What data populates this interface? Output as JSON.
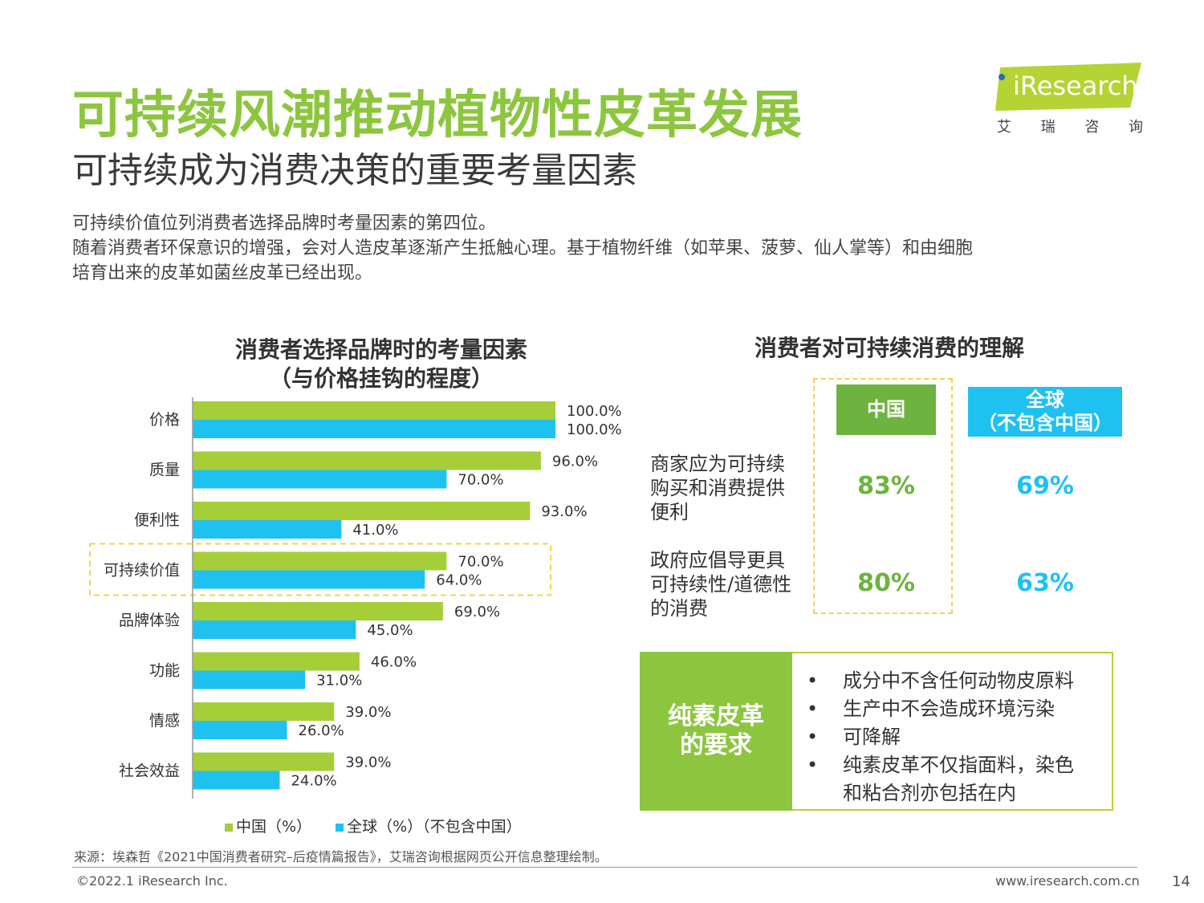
{
  "header": {
    "title": "可持续风潮推动植物性皮革发展",
    "subtitle": "可持续成为消费决策的重要考量因素"
  },
  "intro": {
    "line1": "可持续价值位列消费者选择品牌时考量因素的第四位。",
    "line2": "随着消费者环保意识的增强，会对人造皮革逐渐产生抵触心理。基于植物纤维（如苹果、菠萝、仙人掌等）和由细胞",
    "line3": "培育出来的皮革如菌丝皮革已经出现。"
  },
  "logo": {
    "text": "iResearch",
    "sub": [
      "艾",
      "瑞",
      "咨",
      "询"
    ],
    "color": "#b4d334"
  },
  "left_chart": {
    "title_line1": "消费者选择品牌时的考量因素",
    "title_line2": "（与价格挂钩的程度）",
    "legend_china": "中国（%）",
    "legend_global": "全球（%）（不包含中国）"
  },
  "chart_data": [
    {
      "type": "bar",
      "orientation": "horizontal",
      "title": "消费者选择品牌时的考量因素（与价格挂钩的程度）",
      "categories": [
        "价格",
        "质量",
        "便利性",
        "可持续价值",
        "品牌体验",
        "功能",
        "情感",
        "社会效益"
      ],
      "series": [
        {
          "name": "中国（%）",
          "color": "#a6ce39",
          "values": [
            100.0,
            96.0,
            93.0,
            70.0,
            69.0,
            46.0,
            39.0,
            39.0
          ],
          "labels": [
            "100.0%",
            "96.0%",
            "93.0%",
            "70.0%",
            "69.0%",
            "46.0%",
            "39.0%",
            "39.0%"
          ]
        },
        {
          "name": "全球（%）（不包含中国）",
          "color": "#1ec1f0",
          "values": [
            100.0,
            70.0,
            41.0,
            64.0,
            45.0,
            31.0,
            26.0,
            24.0
          ],
          "labels": [
            "100.0%",
            "70.0%",
            "41.0%",
            "64.0%",
            "45.0%",
            "31.0%",
            "26.0%",
            "24.0%"
          ]
        }
      ],
      "xlim": [
        0,
        100
      ],
      "highlighted_category": "可持续价值",
      "legend_position": "bottom"
    },
    {
      "type": "table",
      "title": "消费者对可持续消费的理解",
      "columns": [
        "中国",
        "全球（不包含中国）"
      ],
      "rows": [
        {
          "label": "商家应为可持续购买和消费提供便利",
          "values": [
            "83%",
            "69%"
          ]
        },
        {
          "label": "政府应倡导更具可持续性/道德性的消费",
          "values": [
            "80%",
            "63%"
          ]
        }
      ]
    }
  ],
  "right_table": {
    "title": "消费者对可持续消费的理解",
    "col_china": "中国",
    "col_global_line1": "全球",
    "col_global_line2": "（不包含中国）",
    "row1_line1": "商家应为可持续",
    "row1_line2": "购买和消费提供",
    "row1_line3": "便利",
    "row2_line1": "政府应倡导更具",
    "row2_line2": "可持续性/道德性",
    "row2_line3": "的消费",
    "r1_cn": "83%",
    "r1_gl": "69%",
    "r2_cn": "80%",
    "r2_gl": "63%"
  },
  "vegan": {
    "head_line1": "纯素皮革",
    "head_line2": "的要求",
    "bullet": "•",
    "items": [
      "成分中不含任何动物皮原料",
      "生产中不会造成环境污染",
      "可降解",
      "纯素皮革不仅指面料，染色",
      "和粘合剂亦包括在内"
    ]
  },
  "footer": {
    "source": "来源：埃森哲《2021中国消费者研究–后疫情篇报告》，艾瑞咨询根据网页公开信息整理绘制。",
    "copyright": "©2022.1 iResearch Inc.",
    "site": "www.iresearch.com.cn",
    "page": "14"
  }
}
